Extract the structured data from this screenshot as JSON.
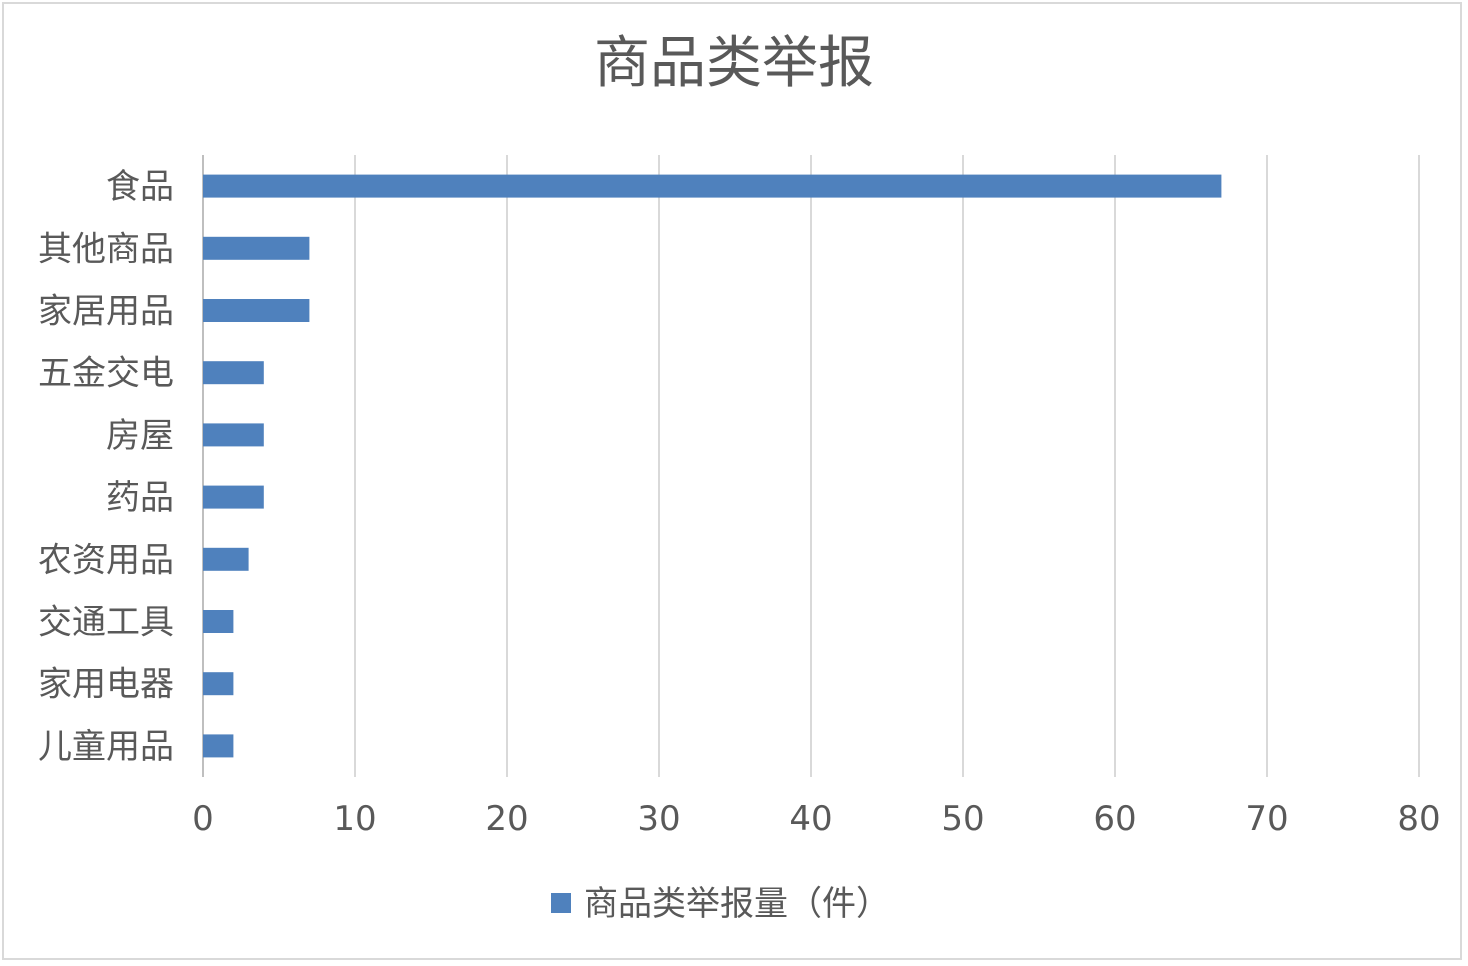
{
  "chart_data": {
    "type": "bar",
    "orientation": "horizontal",
    "title": "商品类举报",
    "categories": [
      "食品",
      "其他商品",
      "家居用品",
      "五金交电",
      "房屋",
      "药品",
      "农资用品",
      "交通工具",
      "家用电器",
      "儿童用品"
    ],
    "series": [
      {
        "name": "商品类举报量（件）",
        "values": [
          67,
          7,
          7,
          4,
          4,
          4,
          3,
          2,
          2,
          2
        ],
        "color": "#4f81bd"
      }
    ],
    "xlim": [
      0,
      80
    ],
    "xticks": [
      "0",
      "10",
      "20",
      "30",
      "40",
      "50",
      "60",
      "70",
      "80"
    ],
    "grid": "vertical",
    "legend": "bottom"
  }
}
